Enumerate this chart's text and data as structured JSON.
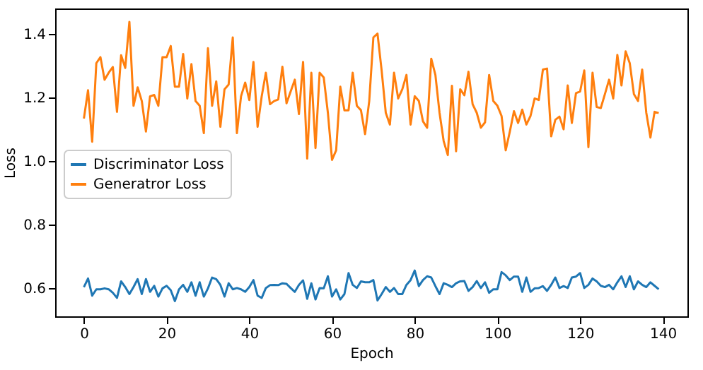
{
  "chart_data": {
    "type": "line",
    "xlabel": "Epoch",
    "ylabel": "Loss",
    "x": [
      0,
      1,
      2,
      3,
      4,
      5,
      6,
      7,
      8,
      9,
      10,
      11,
      12,
      13,
      14,
      15,
      16,
      17,
      18,
      19,
      20,
      21,
      22,
      23,
      24,
      25,
      26,
      27,
      28,
      29,
      30,
      31,
      32,
      33,
      34,
      35,
      36,
      37,
      38,
      39,
      40,
      41,
      42,
      43,
      44,
      45,
      46,
      47,
      48,
      49,
      50,
      51,
      52,
      53,
      54,
      55,
      56,
      57,
      58,
      59,
      60,
      61,
      62,
      63,
      64,
      65,
      66,
      67,
      68,
      69,
      70,
      71,
      72,
      73,
      74,
      75,
      76,
      77,
      78,
      79,
      80,
      81,
      82,
      83,
      84,
      85,
      86,
      87,
      88,
      89,
      90,
      91,
      92,
      93,
      94,
      95,
      96,
      97,
      98,
      99,
      100,
      101,
      102,
      103,
      104,
      105,
      106,
      107,
      108,
      109,
      110,
      111,
      112,
      113,
      114,
      115,
      116,
      117,
      118,
      119,
      120,
      121,
      122,
      123,
      124,
      125,
      126,
      127,
      128,
      129,
      130,
      131,
      132,
      133,
      134,
      135,
      136,
      137,
      138,
      139
    ],
    "series": [
      {
        "name": "Discriminator Loss",
        "color": "#1f77b4",
        "values": [
          0.603,
          0.63,
          0.576,
          0.596,
          0.596,
          0.599,
          0.596,
          0.585,
          0.569,
          0.621,
          0.603,
          0.581,
          0.603,
          0.628,
          0.581,
          0.628,
          0.588,
          0.607,
          0.573,
          0.599,
          0.607,
          0.593,
          0.559,
          0.596,
          0.61,
          0.588,
          0.618,
          0.576,
          0.618,
          0.573,
          0.599,
          0.633,
          0.628,
          0.61,
          0.573,
          0.615,
          0.596,
          0.6,
          0.596,
          0.588,
          0.603,
          0.625,
          0.576,
          0.569,
          0.6,
          0.609,
          0.61,
          0.609,
          0.615,
          0.613,
          0.6,
          0.588,
          0.61,
          0.624,
          0.566,
          0.615,
          0.564,
          0.6,
          0.599,
          0.637,
          0.573,
          0.596,
          0.564,
          0.581,
          0.647,
          0.61,
          0.6,
          0.621,
          0.618,
          0.618,
          0.625,
          0.561,
          0.581,
          0.603,
          0.588,
          0.6,
          0.581,
          0.581,
          0.61,
          0.625,
          0.655,
          0.606,
          0.625,
          0.637,
          0.633,
          0.606,
          0.581,
          0.615,
          0.61,
          0.603,
          0.615,
          0.621,
          0.622,
          0.591,
          0.603,
          0.622,
          0.6,
          0.618,
          0.585,
          0.596,
          0.596,
          0.65,
          0.64,
          0.625,
          0.636,
          0.636,
          0.588,
          0.633,
          0.588,
          0.599,
          0.6,
          0.606,
          0.591,
          0.61,
          0.633,
          0.6,
          0.606,
          0.6,
          0.633,
          0.636,
          0.647,
          0.6,
          0.61,
          0.63,
          0.621,
          0.607,
          0.603,
          0.61,
          0.596,
          0.618,
          0.637,
          0.603,
          0.637,
          0.596,
          0.621,
          0.61,
          0.603,
          0.618,
          0.607,
          0.596
        ]
      },
      {
        "name": "Generatror Loss",
        "color": "#ff7f0e",
        "values": [
          1.133,
          1.222,
          1.06,
          1.307,
          1.326,
          1.255,
          1.277,
          1.295,
          1.154,
          1.332,
          1.292,
          1.437,
          1.173,
          1.231,
          1.188,
          1.092,
          1.203,
          1.207,
          1.173,
          1.326,
          1.326,
          1.361,
          1.233,
          1.233,
          1.336,
          1.196,
          1.304,
          1.188,
          1.173,
          1.087,
          1.354,
          1.173,
          1.25,
          1.107,
          1.225,
          1.24,
          1.388,
          1.087,
          1.203,
          1.246,
          1.191,
          1.311,
          1.107,
          1.203,
          1.277,
          1.178,
          1.188,
          1.193,
          1.296,
          1.181,
          1.218,
          1.255,
          1.147,
          1.311,
          1.007,
          1.277,
          1.04,
          1.277,
          1.262,
          1.151,
          1.003,
          1.033,
          1.233,
          1.159,
          1.159,
          1.277,
          1.173,
          1.159,
          1.084,
          1.188,
          1.388,
          1.4,
          1.284,
          1.151,
          1.114,
          1.277,
          1.196,
          1.225,
          1.27,
          1.114,
          1.203,
          1.188,
          1.124,
          1.104,
          1.321,
          1.27,
          1.151,
          1.062,
          1.018,
          1.236,
          1.03,
          1.225,
          1.206,
          1.28,
          1.178,
          1.151,
          1.104,
          1.121,
          1.27,
          1.188,
          1.173,
          1.141,
          1.033,
          1.092,
          1.156,
          1.119,
          1.161,
          1.114,
          1.141,
          1.196,
          1.191,
          1.287,
          1.29,
          1.077,
          1.129,
          1.139,
          1.099,
          1.237,
          1.119,
          1.213,
          1.218,
          1.284,
          1.043,
          1.277,
          1.169,
          1.166,
          1.21,
          1.255,
          1.196,
          1.333,
          1.237,
          1.344,
          1.307,
          1.21,
          1.188,
          1.287,
          1.151,
          1.073,
          1.154,
          1.15
        ]
      }
    ],
    "xlim": [
      -6.95,
      145.95
    ],
    "ylim": [
      0.511,
      1.479
    ],
    "xticks": [
      0,
      20,
      40,
      60,
      80,
      100,
      120,
      140
    ],
    "yticks": [
      0.6,
      0.8,
      {
        "value": 1.0,
        "label": "1.0"
      },
      1.2,
      1.4
    ],
    "legend": "center left",
    "grid": false,
    "marker": "none",
    "line_style": "solid"
  }
}
